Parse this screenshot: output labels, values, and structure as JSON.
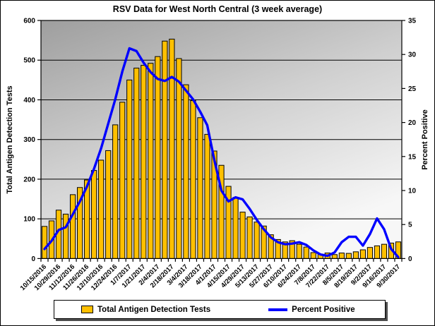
{
  "title": "RSV Data for West North Central (3 week average)",
  "axes": {
    "left": {
      "title": "Total Antigen Detection Tests",
      "ticks": [
        0,
        100,
        200,
        300,
        400,
        500,
        600
      ]
    },
    "right": {
      "title": "Percent Positive",
      "ticks": [
        0,
        5,
        10,
        15,
        20,
        25,
        30,
        35
      ]
    }
  },
  "legend": {
    "items": [
      {
        "label": "Total Antigen Detection Tests",
        "swatch": "bar",
        "color": "#FFC000"
      },
      {
        "label": "Percent Positive",
        "swatch": "line",
        "color": "#0000FF"
      }
    ]
  },
  "colors": {
    "bar_fill": "#FFC000",
    "bar_border": "#000000",
    "line": "#0000FF",
    "grid": "#000000",
    "plot_gradient_start": "#9e9e9e",
    "plot_gradient_mid": "#cfcfcf",
    "plot_gradient_end": "#f7f7f7",
    "text": "#000000"
  },
  "chart_data": {
    "type": "combo",
    "title": "RSV Data for West North Central (3 week average)",
    "ylabel_left": "Total Antigen Detection Tests",
    "ylabel_right": "Percent Positive",
    "ylim_left": [
      0,
      600
    ],
    "ylim_right": [
      0,
      35
    ],
    "grid": "horizontal",
    "legend_position": "bottom",
    "x_label_every": 2,
    "categories": [
      "10/15/2016",
      "10/22/2016",
      "10/29/2016",
      "11/5/2016",
      "11/12/2016",
      "11/19/2016",
      "11/26/2016",
      "12/3/2016",
      "12/10/2016",
      "12/17/2016",
      "12/24/2016",
      "12/31/2016",
      "1/7/2017",
      "1/14/2017",
      "1/21/2017",
      "1/28/2017",
      "2/4/2017",
      "2/11/2017",
      "2/18/2017",
      "2/25/2017",
      "3/4/2017",
      "3/11/2017",
      "3/18/2017",
      "3/25/2017",
      "4/1/2017",
      "4/8/2017",
      "4/15/2017",
      "4/22/2017",
      "4/29/2017",
      "5/6/2017",
      "5/13/2017",
      "5/20/2017",
      "5/27/2017",
      "6/3/2017",
      "6/10/2017",
      "6/17/2017",
      "6/24/2017",
      "7/1/2017",
      "7/8/2017",
      "7/15/2017",
      "7/22/2017",
      "7/29/2017",
      "8/5/2017",
      "8/12/2017",
      "8/19/2017",
      "8/26/2017",
      "9/2/2017",
      "9/9/2017",
      "9/16/2017",
      "9/23/2017",
      "9/30/2017"
    ],
    "series": [
      {
        "name": "Total Antigen Detection Tests",
        "type": "bar",
        "axis": "left",
        "color": "#FFC000",
        "values": [
          81,
          95,
          122,
          112,
          161,
          179,
          198,
          222,
          248,
          272,
          337,
          394,
          450,
          480,
          487,
          492,
          509,
          548,
          553,
          504,
          438,
          398,
          355,
          313,
          271,
          235,
          182,
          154,
          117,
          105,
          92,
          82,
          60,
          48,
          42,
          45,
          36,
          29,
          15,
          11,
          14,
          10,
          14,
          13,
          17,
          22,
          28,
          32,
          36,
          39,
          42
        ]
      },
      {
        "name": "Percent Positive",
        "type": "line",
        "axis": "right",
        "color": "#0000FF",
        "values": [
          1.4,
          2.6,
          4.2,
          4.6,
          6.5,
          8.4,
          10.6,
          13.2,
          16.2,
          19.8,
          23.4,
          27.5,
          30.9,
          30.5,
          28.8,
          27.4,
          26.4,
          26.1,
          26.7,
          26.0,
          24.7,
          23.4,
          21.6,
          19.6,
          14.5,
          10.0,
          8.4,
          9.0,
          8.7,
          7.3,
          5.7,
          4.3,
          3.1,
          2.4,
          2.1,
          2.2,
          2.4,
          2.0,
          1.2,
          0.6,
          0.4,
          0.9,
          2.4,
          3.2,
          3.2,
          1.9,
          3.6,
          5.9,
          4.3,
          1.4,
          0.2
        ]
      }
    ]
  }
}
